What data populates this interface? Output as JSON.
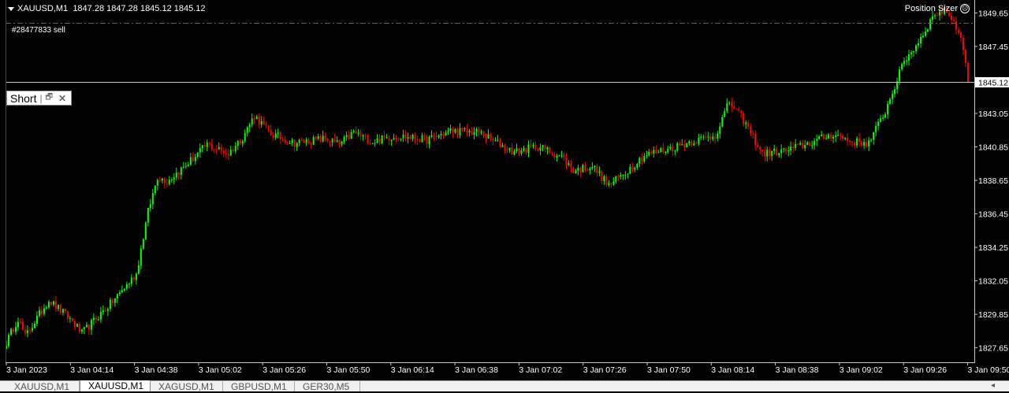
{
  "header": {
    "symbol": "XAUUSD,M1",
    "ohlc": "1847.28 1847.28 1845.12 1845.12"
  },
  "position_sizer": {
    "label": "Position Sizer",
    "icon": "smiley-icon"
  },
  "order_line": {
    "label": "#28477833 sell",
    "price": 1849.0,
    "color": "#ff2020"
  },
  "current_price": {
    "value": 1845.12,
    "label": "1845.12"
  },
  "short_panel": {
    "label": "Short",
    "restore_icon": "restore-window-icon",
    "close_icon": "close-icon"
  },
  "tabs": [
    {
      "label": "XAUUSD,M1",
      "active": false
    },
    {
      "label": "XAUUSD,M1",
      "active": true
    },
    {
      "label": "XAGUSD,M1",
      "active": false
    },
    {
      "label": "GBPUSD,M1",
      "active": false
    },
    {
      "label": "GER30,M5",
      "active": false
    }
  ],
  "chart_data": {
    "type": "candlestick",
    "y_ticks": [
      "1849.65",
      "1847.45",
      "1845.25",
      "1843.05",
      "1840.85",
      "1838.65",
      "1836.45",
      "1834.25",
      "1832.05",
      "1829.85",
      "1827.65"
    ],
    "x_ticks": [
      "3 Jan 2023",
      "3 Jan 04:14",
      "3 Jan 04:38",
      "3 Jan 05:02",
      "3 Jan 05:26",
      "3 Jan 05:50",
      "3 Jan 06:14",
      "3 Jan 06:38",
      "3 Jan 07:02",
      "3 Jan 07:26",
      "3 Jan 07:50",
      "3 Jan 08:14",
      "3 Jan 08:38",
      "3 Jan 09:02",
      "3 Jan 09:26",
      "3 Jan 09:50"
    ],
    "ylim": [
      1826.7,
      1850.5
    ],
    "up_color": "#00ff00",
    "down_color": "#ff0000",
    "grid": false,
    "close_path": [
      [
        0,
        1828.0
      ],
      [
        5,
        1829.6
      ],
      [
        8,
        1828.4
      ],
      [
        18,
        1830.8
      ],
      [
        28,
        1829.4
      ],
      [
        32,
        1828.6
      ],
      [
        45,
        1830.7
      ],
      [
        55,
        1832.5
      ],
      [
        60,
        1836.6
      ],
      [
        64,
        1838.9
      ],
      [
        68,
        1838.6
      ],
      [
        75,
        1839.5
      ],
      [
        85,
        1841.0
      ],
      [
        94,
        1840.4
      ],
      [
        100,
        1841.5
      ],
      [
        105,
        1842.9
      ],
      [
        112,
        1841.7
      ],
      [
        122,
        1841.1
      ],
      [
        135,
        1841.4
      ],
      [
        141,
        1841.0
      ],
      [
        147,
        1841.8
      ],
      [
        155,
        1841.2
      ],
      [
        165,
        1841.6
      ],
      [
        178,
        1841.3
      ],
      [
        188,
        1841.9
      ],
      [
        200,
        1841.8
      ],
      [
        208,
        1841.1
      ],
      [
        215,
        1840.5
      ],
      [
        225,
        1840.9
      ],
      [
        235,
        1840.2
      ],
      [
        240,
        1839.3
      ],
      [
        248,
        1839.6
      ],
      [
        255,
        1838.3
      ],
      [
        262,
        1839.2
      ],
      [
        270,
        1840.3
      ],
      [
        282,
        1840.8
      ],
      [
        290,
        1841.2
      ],
      [
        300,
        1841.6
      ],
      [
        306,
        1843.8
      ],
      [
        312,
        1842.6
      ],
      [
        320,
        1840.4
      ],
      [
        330,
        1840.6
      ],
      [
        340,
        1841.1
      ],
      [
        350,
        1841.7
      ],
      [
        358,
        1841.2
      ],
      [
        365,
        1841.1
      ],
      [
        372,
        1843.2
      ],
      [
        380,
        1846.5
      ],
      [
        385,
        1847.5
      ],
      [
        393,
        1849.6
      ],
      [
        398,
        1849.8
      ],
      [
        402,
        1848.8
      ],
      [
        405,
        1847.4
      ],
      [
        407,
        1845.12
      ]
    ]
  }
}
